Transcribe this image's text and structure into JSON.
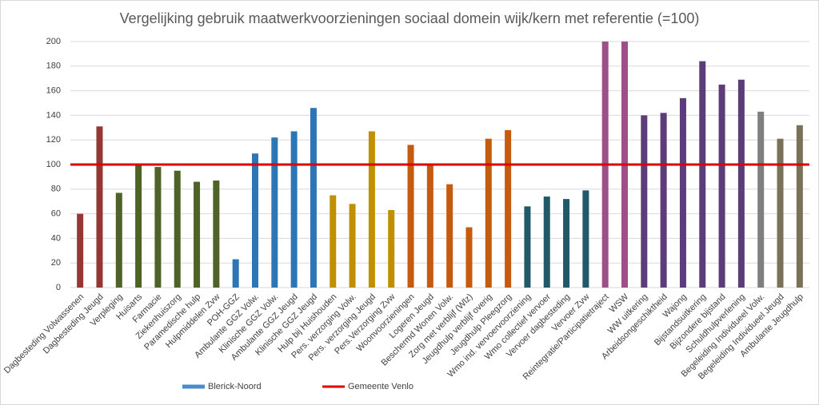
{
  "chart_data": {
    "type": "bar",
    "title": "Vergelijking gebruik maatwerkvoorzieningen sociaal domein wijk/kern met referentie (=100)",
    "categories": [
      "Dagbesteding Volwassenen",
      "Dagbesteding Jeugd",
      "Verpleging",
      "Huisarts",
      "Farmacie",
      "Ziekenhuiszorg",
      "Paramedische hulp",
      "Hulpmiddelen Zvw",
      "POH-GGZ",
      "Ambulante GGZ Volw.",
      "Klinische GGZ Volw.",
      "Ambulante GGZ Jeugd",
      "Klinische GGZ Jeugd",
      "Hulp bij Huishouden",
      "Pers. verzorging Volw.",
      "Pers. verzorging Jeugd",
      "Pers.Verzorging Zvw",
      "Woonvoorzieningen",
      "Logeren Jeugd",
      "Beschermd Wonen Volw.",
      "Zorg met verblijf (Wlz)",
      "Jeugdhulp verblijf overig",
      "Jeugdhulp Pleegzorg",
      "Wmo ind. vervoervoorziening",
      "Wmo collectief vervoer",
      "Vervoer dagbesteding",
      "Vervoer Zvw",
      "Reintegratie/Participatietraject",
      "WSW",
      "WW uitkering",
      "Arbeidsongeschiktheid",
      "Wajong",
      "Bijstandsuitkering",
      "Bijzondere bijstand",
      "Schuldhulpverlening",
      "Begeleiding Individueel Volw.",
      "Begeleiding Individueel Jeugd",
      "Ambulante Jeugdhulp"
    ],
    "series": [
      {
        "name": "Blerick-Noord",
        "color": "#4a8cc9",
        "values": [
          60,
          131,
          77,
          100,
          98,
          95,
          86,
          87,
          23,
          109,
          122,
          127,
          146,
          75,
          68,
          127,
          63,
          116,
          100,
          84,
          49,
          121,
          128,
          66,
          74,
          72,
          79,
          200,
          200,
          140,
          142,
          154,
          184,
          165,
          169,
          143,
          121,
          132
        ],
        "colors": [
          "#953735",
          "#953735",
          "#4f6228",
          "#4f6228",
          "#4f6228",
          "#4f6228",
          "#4f6228",
          "#4f6228",
          "#2e75b6",
          "#2e75b6",
          "#2e75b6",
          "#2e75b6",
          "#2e75b6",
          "#bf9000",
          "#bf9000",
          "#bf9000",
          "#bf9000",
          "#c55a11",
          "#c55a11",
          "#c55a11",
          "#c55a11",
          "#c55a11",
          "#c55a11",
          "#215968",
          "#215968",
          "#215968",
          "#215968",
          "#9e4f8a",
          "#9e4f8a",
          "#5c3d7a",
          "#5c3d7a",
          "#5c3d7a",
          "#5c3d7a",
          "#5c3d7a",
          "#5c3d7a",
          "#7f7f7f",
          "#7a7159",
          "#7a7159"
        ]
      }
    ],
    "reference": {
      "name": "Gemeente Venlo",
      "value": 100,
      "color": "#e00000"
    },
    "ylim": [
      0,
      200
    ],
    "yticks": [
      0,
      20,
      40,
      60,
      80,
      100,
      120,
      140,
      160,
      180,
      200
    ],
    "grid": true
  }
}
